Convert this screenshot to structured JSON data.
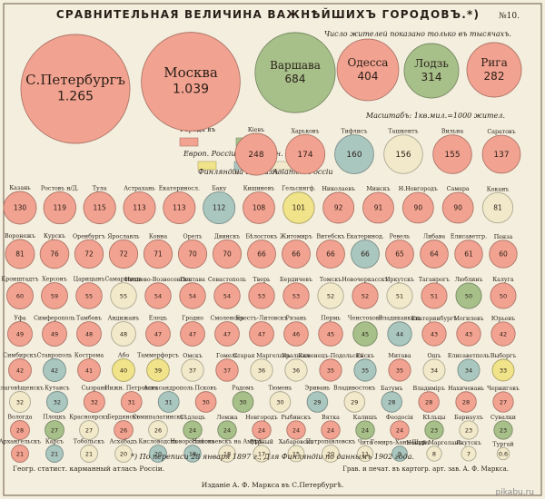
{
  "header": {
    "title": "СРАВНИТЕЛЬНАЯ ВЕЛИЧИНА ВАЖНѢЙШИХЪ ГОРОДОВЪ.*)",
    "sheet_number": "№10.",
    "subtitle": "Число жителей показано только въ тысячахъ.",
    "scale_note": "Масштабъ: 1кв.мил.=1000 жител."
  },
  "legend": {
    "title": "Города въ",
    "items": [
      {
        "key": "eur",
        "label": "Европ. Россiи",
        "color": "#f2a290"
      },
      {
        "key": "vis",
        "label": "Привислин. крае",
        "color": "#a7c08a"
      },
      {
        "key": "fin",
        "label": "Финляндiи",
        "color": "#f0e38a"
      },
      {
        "key": "cau",
        "label": "на Кавказѣ",
        "color": "#a9c6bf"
      },
      {
        "key": "asi",
        "label": "Азiатск. Россiи",
        "color": "#f1e9c9"
      }
    ]
  },
  "footer": {
    "note": "*) По переписи 28 января 1897 г., Для Финляндiи по даннымъ 1902 года.",
    "left_credit": "Геогр. статист. карманный атласъ Россiи.",
    "right_credit": "Грав. и печат. въ картогр. арт. зав. А. Ф. Маркса.",
    "publisher": "Изданiе А. Ф. Маркса въ С.Петербургѣ.",
    "watermark": "pikabu.ru"
  },
  "chart_data": {
    "type": "bubble",
    "unit": "тыс. жителей",
    "colors": {
      "eur": "#f2a290",
      "vis": "#a7c08a",
      "fin": "#f0e38a",
      "cau": "#a9c6bf",
      "asi": "#f1e9c9"
    },
    "big_cities": [
      {
        "name": "С.Петербургъ",
        "value": "1.265",
        "region": "eur"
      },
      {
        "name": "Москва",
        "value": "1.039",
        "region": "eur"
      },
      {
        "name": "Варшава",
        "value": "684",
        "region": "vis"
      },
      {
        "name": "Одесса",
        "value": "404",
        "region": "eur"
      },
      {
        "name": "Лодзь",
        "value": "314",
        "region": "vis"
      },
      {
        "name": "Рига",
        "value": "282",
        "region": "eur"
      }
    ],
    "rows": [
      [
        {
          "name": "Кiевъ",
          "value": 248,
          "region": "eur"
        },
        {
          "name": "Харьковъ",
          "value": 174,
          "region": "eur"
        },
        {
          "name": "Тифлисъ",
          "value": 160,
          "region": "cau"
        },
        {
          "name": "Ташкентъ",
          "value": 156,
          "region": "asi"
        },
        {
          "name": "Вильна",
          "value": 155,
          "region": "eur"
        },
        {
          "name": "Саратовъ",
          "value": 137,
          "region": "eur"
        }
      ],
      [
        {
          "name": "Казань",
          "value": 130,
          "region": "eur"
        },
        {
          "name": "Ростовъ н/Д.",
          "value": 119,
          "region": "eur"
        },
        {
          "name": "Тула",
          "value": 115,
          "region": "eur"
        },
        {
          "name": "Астрахань",
          "value": 113,
          "region": "eur"
        },
        {
          "name": "Екатериносл.",
          "value": 113,
          "region": "eur"
        },
        {
          "name": "Баку",
          "value": 112,
          "region": "cau"
        },
        {
          "name": "Кишиневъ",
          "value": 108,
          "region": "eur"
        },
        {
          "name": "Гельсингф.",
          "value": 101,
          "region": "fin"
        },
        {
          "name": "Николаевъ",
          "value": 92,
          "region": "eur"
        },
        {
          "name": "Минскъ",
          "value": 91,
          "region": "eur"
        },
        {
          "name": "Н.Новгородъ",
          "value": 90,
          "region": "eur"
        },
        {
          "name": "Самара",
          "value": 90,
          "region": "eur"
        },
        {
          "name": "Коканъ",
          "value": 81,
          "region": "asi"
        }
      ],
      [
        {
          "name": "Воронежъ",
          "value": 81,
          "region": "eur"
        },
        {
          "name": "Курскъ",
          "value": 76,
          "region": "eur"
        },
        {
          "name": "Оренбургъ",
          "value": 72,
          "region": "eur"
        },
        {
          "name": "Ярославль",
          "value": 72,
          "region": "eur"
        },
        {
          "name": "Ковна",
          "value": 71,
          "region": "eur"
        },
        {
          "name": "Орелъ",
          "value": 70,
          "region": "eur"
        },
        {
          "name": "Двинскъ",
          "value": 70,
          "region": "eur"
        },
        {
          "name": "Бѣлостокъ",
          "value": 66,
          "region": "eur"
        },
        {
          "name": "Житомиръ",
          "value": 66,
          "region": "eur"
        },
        {
          "name": "Витебскъ",
          "value": 66,
          "region": "eur"
        },
        {
          "name": "Екатеринод.",
          "value": 66,
          "region": "cau"
        },
        {
          "name": "Ревель",
          "value": 65,
          "region": "eur"
        },
        {
          "name": "Либава",
          "value": 64,
          "region": "eur"
        },
        {
          "name": "Елисаветгр.",
          "value": 61,
          "region": "eur"
        },
        {
          "name": "Пенза",
          "value": 60,
          "region": "eur"
        }
      ],
      [
        {
          "name": "Кронштадтъ",
          "value": 60,
          "region": "eur"
        },
        {
          "name": "Херсонъ",
          "value": 59,
          "region": "eur"
        },
        {
          "name": "Царицынъ",
          "value": 55,
          "region": "eur"
        },
        {
          "name": "Самаркандъ",
          "value": 55,
          "region": "asi"
        },
        {
          "name": "Иваново-Вознесенскъ",
          "value": 54,
          "region": "eur"
        },
        {
          "name": "Полтава",
          "value": 54,
          "region": "eur"
        },
        {
          "name": "Севастополь",
          "value": 54,
          "region": "eur"
        },
        {
          "name": "Тверь",
          "value": 53,
          "region": "eur"
        },
        {
          "name": "Бердичевъ",
          "value": 53,
          "region": "eur"
        },
        {
          "name": "Томскъ",
          "value": 52,
          "region": "asi"
        },
        {
          "name": "Новочеркасскъ",
          "value": 52,
          "region": "eur"
        },
        {
          "name": "Иркутскъ",
          "value": 51,
          "region": "asi"
        },
        {
          "name": "Таганрогъ",
          "value": 51,
          "region": "eur"
        },
        {
          "name": "Люблинъ",
          "value": 50,
          "region": "vis"
        },
        {
          "name": "Калуга",
          "value": 50,
          "region": "eur"
        }
      ],
      [
        {
          "name": "Уфа",
          "value": 49,
          "region": "eur"
        },
        {
          "name": "Симферополь",
          "value": 49,
          "region": "eur"
        },
        {
          "name": "Тамбовъ",
          "value": 48,
          "region": "eur"
        },
        {
          "name": "Андижанъ",
          "value": 48,
          "region": "asi"
        },
        {
          "name": "Елецъ",
          "value": 47,
          "region": "eur"
        },
        {
          "name": "Гродно",
          "value": 47,
          "region": "eur"
        },
        {
          "name": "Смоленскъ",
          "value": 47,
          "region": "eur"
        },
        {
          "name": "Брестъ-Литовскъ",
          "value": 47,
          "region": "eur"
        },
        {
          "name": "Рязань",
          "value": 46,
          "region": "eur"
        },
        {
          "name": "Пермь",
          "value": 45,
          "region": "eur"
        },
        {
          "name": "Ченстохово",
          "value": 45,
          "region": "vis"
        },
        {
          "name": "Владикавказъ",
          "value": 44,
          "region": "cau"
        },
        {
          "name": "Екатеринбургъ",
          "value": 43,
          "region": "eur"
        },
        {
          "name": "Могилевъ",
          "value": 43,
          "region": "eur"
        },
        {
          "name": "Юрьевъ",
          "value": 42,
          "region": "eur"
        }
      ],
      [
        {
          "name": "Симбирскъ",
          "value": 42,
          "region": "eur"
        },
        {
          "name": "Ставрополь",
          "value": 42,
          "region": "cau"
        },
        {
          "name": "Кострома",
          "value": 41,
          "region": "eur"
        },
        {
          "name": "Або",
          "value": 40,
          "region": "fin"
        },
        {
          "name": "Таммерфорсъ",
          "value": 39,
          "region": "fin"
        },
        {
          "name": "Омскъ",
          "value": 37,
          "region": "asi"
        },
        {
          "name": "Гомель",
          "value": 37,
          "region": "eur"
        },
        {
          "name": "Старая Маргеланъ",
          "value": 36,
          "region": "asi"
        },
        {
          "name": "Уральскъ",
          "value": 36,
          "region": "asi"
        },
        {
          "name": "Каменецъ-Подольскъ",
          "value": 35,
          "region": "eur"
        },
        {
          "name": "Ейскъ",
          "value": 35,
          "region": "cau"
        },
        {
          "name": "Митава",
          "value": 35,
          "region": "eur"
        },
        {
          "name": "Ошъ",
          "value": 34,
          "region": "asi"
        },
        {
          "name": "Елисаветполь",
          "value": 34,
          "region": "cau"
        },
        {
          "name": "Выборгъ",
          "value": 33,
          "region": "fin"
        }
      ],
      [
        {
          "name": "Благовѣщенскъ",
          "value": 32,
          "region": "asi"
        },
        {
          "name": "Кутаисъ",
          "value": 32,
          "region": "cau"
        },
        {
          "name": "Сызрань",
          "value": 32,
          "region": "eur"
        },
        {
          "name": "Нижн. Петровскъ",
          "value": 31,
          "region": "eur"
        },
        {
          "name": "Александрополь",
          "value": 31,
          "region": "cau"
        },
        {
          "name": "Псковъ",
          "value": 30,
          "region": "eur"
        },
        {
          "name": "Радомъ",
          "value": 30,
          "region": "vis"
        },
        {
          "name": "Тюмень",
          "value": 30,
          "region": "asi"
        },
        {
          "name": "Эривань",
          "value": 29,
          "region": "cau"
        },
        {
          "name": "Владивостокъ",
          "value": 29,
          "region": "asi"
        },
        {
          "name": "Батумъ",
          "value": 28,
          "region": "cau"
        },
        {
          "name": "Владимiръ",
          "value": 28,
          "region": "eur"
        },
        {
          "name": "Нахичевань",
          "value": 28,
          "region": "eur"
        },
        {
          "name": "Черниговъ",
          "value": 27,
          "region": "eur"
        }
      ],
      [
        {
          "name": "Вологда",
          "value": 28,
          "region": "eur"
        },
        {
          "name": "Плоцкъ",
          "value": 27,
          "region": "vis"
        },
        {
          "name": "Красноярскъ",
          "value": 27,
          "region": "asi"
        },
        {
          "name": "Бердянскъ",
          "value": 26,
          "region": "eur"
        },
        {
          "name": "Семипалатинскъ",
          "value": 26,
          "region": "asi"
        },
        {
          "name": "Сѣдлецъ",
          "value": 24,
          "region": "vis"
        },
        {
          "name": "Ломжа",
          "value": 24,
          "region": "vis"
        },
        {
          "name": "Новгородъ",
          "value": 24,
          "region": "eur"
        },
        {
          "name": "Рыбинскъ",
          "value": 24,
          "region": "eur"
        },
        {
          "name": "Вятка",
          "value": 24,
          "region": "eur"
        },
        {
          "name": "Калишъ",
          "value": 24,
          "region": "vis"
        },
        {
          "name": "Феодосiя",
          "value": 24,
          "region": "eur"
        },
        {
          "name": "Кѣльцы",
          "value": 23,
          "region": "vis"
        },
        {
          "name": "Барнаулъ",
          "value": 23,
          "region": "asi"
        },
        {
          "name": "Сувалки",
          "value": 23,
          "region": "vis"
        }
      ],
      [
        {
          "name": "Архангельскъ",
          "value": 21,
          "region": "eur"
        },
        {
          "name": "Карсъ",
          "value": 21,
          "region": "cau"
        },
        {
          "name": "Тобольскъ",
          "value": 21,
          "region": "asi"
        },
        {
          "name": "Асхабадъ",
          "value": 20,
          "region": "asi"
        },
        {
          "name": "Кисловодскъ",
          "value": 20,
          "region": "cau"
        },
        {
          "name": "Новороссiйскъ",
          "value": 18,
          "region": "cau"
        },
        {
          "name": "Николаевскъ на Амурѣ",
          "value": 18,
          "region": "asi"
        },
        {
          "name": "Вѣрный",
          "value": 17,
          "region": "asi"
        },
        {
          "name": "Хабаровскъ",
          "value": 15,
          "region": "asi"
        },
        {
          "name": "Петропавловскъ",
          "value": 20,
          "region": "asi"
        },
        {
          "name": "Чита",
          "value": 11,
          "region": "asi"
        },
        {
          "name": "Темиръ-Ханъ-Шура",
          "value": 9,
          "region": "cau"
        },
        {
          "name": "Новый Маргеланъ",
          "value": 8,
          "region": "asi"
        },
        {
          "name": "Якутскъ",
          "value": 7,
          "region": "asi"
        },
        {
          "name": "Тургай",
          "value": 0.6,
          "region": "asi"
        }
      ]
    ]
  }
}
